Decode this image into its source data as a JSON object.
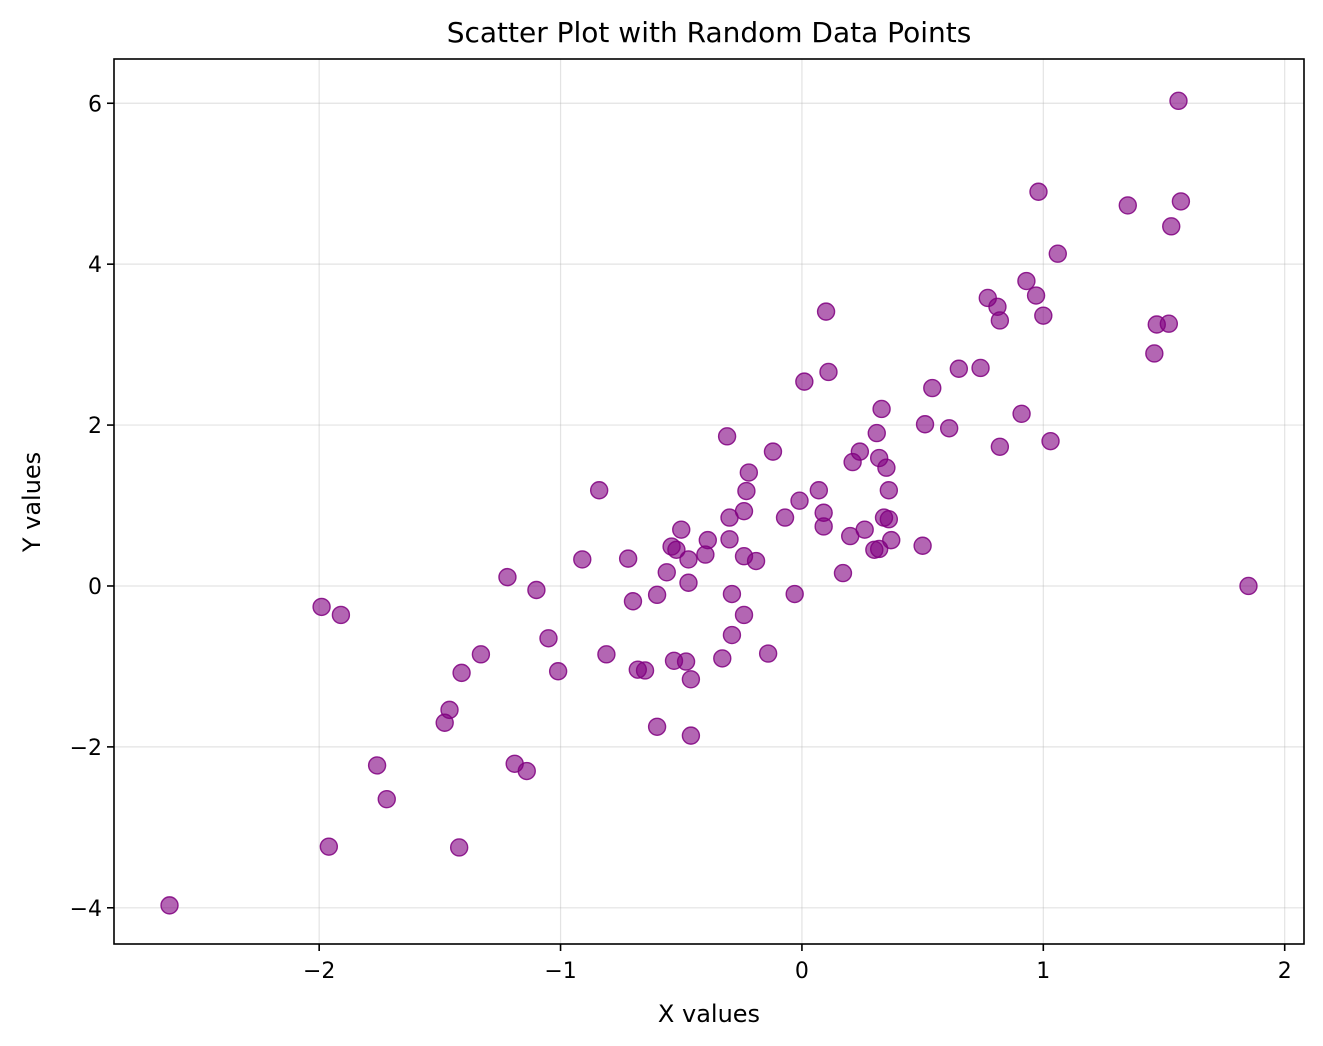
{
  "chart_data": {
    "type": "scatter",
    "title": "Scatter Plot with Random Data Points",
    "xlabel": "X values",
    "ylabel": "Y values",
    "xlim": [
      -2.85,
      2.08
    ],
    "ylim": [
      -4.45,
      6.55
    ],
    "xticks": [
      -2,
      -1,
      0,
      1,
      2
    ],
    "yticks": [
      -4,
      -2,
      0,
      2,
      4,
      6
    ],
    "xtick_labels": [
      "−2",
      "−1",
      "0",
      "1",
      "2"
    ],
    "ytick_labels": [
      "−4",
      "−2",
      "0",
      "2",
      "4",
      "6"
    ],
    "grid": true,
    "marker_color": "#800080",
    "marker_alpha": 0.6,
    "x": [
      -2.62,
      -1.99,
      -1.96,
      -1.91,
      -1.76,
      -1.72,
      -1.48,
      -1.46,
      -1.42,
      -1.41,
      -1.33,
      -1.22,
      -1.19,
      -1.14,
      -1.1,
      -1.05,
      -1.01,
      -0.91,
      -0.84,
      -0.81,
      -0.72,
      -0.7,
      -0.68,
      -0.65,
      -0.6,
      -0.6,
      -0.56,
      -0.54,
      -0.53,
      -0.52,
      -0.5,
      -0.48,
      -0.47,
      -0.47,
      -0.46,
      -0.46,
      -0.4,
      -0.39,
      -0.33,
      -0.31,
      -0.3,
      -0.3,
      -0.29,
      -0.29,
      -0.24,
      -0.24,
      -0.24,
      -0.23,
      -0.22,
      -0.19,
      -0.14,
      -0.12,
      -0.07,
      -0.03,
      -0.01,
      0.01,
      0.07,
      0.09,
      0.09,
      0.1,
      0.11,
      0.17,
      0.2,
      0.21,
      0.24,
      0.26,
      0.3,
      0.31,
      0.32,
      0.32,
      0.33,
      0.34,
      0.35,
      0.36,
      0.36,
      0.37,
      0.5,
      0.51,
      0.54,
      0.61,
      0.65,
      0.74,
      0.77,
      0.81,
      0.82,
      0.82,
      0.91,
      0.93,
      0.97,
      0.98,
      1.0,
      1.03,
      1.06,
      1.35,
      1.46,
      1.47,
      1.52,
      1.53,
      1.56,
      1.57,
      1.85
    ],
    "y": [
      -3.97,
      -0.26,
      -3.24,
      -0.36,
      -2.23,
      -2.65,
      -1.7,
      -1.54,
      -3.25,
      -1.08,
      -0.85,
      0.11,
      -2.21,
      -2.3,
      -0.05,
      -0.65,
      -1.06,
      0.33,
      1.19,
      -0.85,
      0.34,
      -0.19,
      -1.04,
      -1.05,
      -1.75,
      -0.11,
      0.17,
      0.49,
      -0.93,
      0.45,
      0.7,
      -0.94,
      0.33,
      0.04,
      -1.16,
      -1.86,
      0.39,
      0.57,
      -0.9,
      1.86,
      0.85,
      0.58,
      -0.1,
      -0.61,
      0.93,
      0.37,
      -0.36,
      1.18,
      1.41,
      0.31,
      -0.84,
      1.67,
      0.85,
      -0.1,
      1.06,
      2.54,
      1.19,
      0.91,
      0.74,
      3.41,
      2.66,
      0.16,
      0.62,
      1.54,
      1.67,
      0.7,
      0.45,
      1.9,
      1.59,
      0.46,
      2.2,
      0.85,
      1.47,
      0.83,
      1.19,
      0.57,
      0.5,
      2.01,
      2.46,
      1.96,
      2.7,
      2.71,
      3.58,
      3.47,
      1.73,
      3.3,
      2.14,
      3.79,
      3.61,
      4.9,
      3.36,
      1.8,
      4.13,
      4.73,
      2.89,
      3.25,
      3.26,
      4.47,
      6.03,
      4.78,
      0.0
    ]
  }
}
